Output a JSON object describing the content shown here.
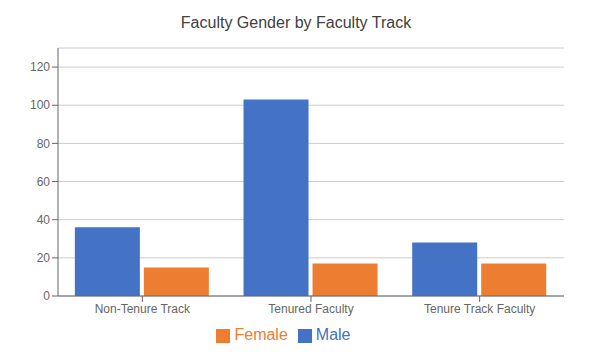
{
  "chart_data": {
    "type": "bar",
    "title": "Faculty Gender by Faculty Track",
    "categories": [
      "Non-Tenure Track",
      "Tenured Faculty",
      "Tenure Track Faculty"
    ],
    "series": [
      {
        "name": "Male",
        "color": "#4472C4",
        "values": [
          36,
          103,
          28
        ]
      },
      {
        "name": "Female",
        "color": "#ED7D31",
        "values": [
          15,
          17,
          17
        ]
      }
    ],
    "ylim": [
      0,
      130
    ],
    "yticks": [
      0,
      20,
      40,
      60,
      80,
      100,
      120
    ],
    "grid": true,
    "legend": "bottom"
  }
}
